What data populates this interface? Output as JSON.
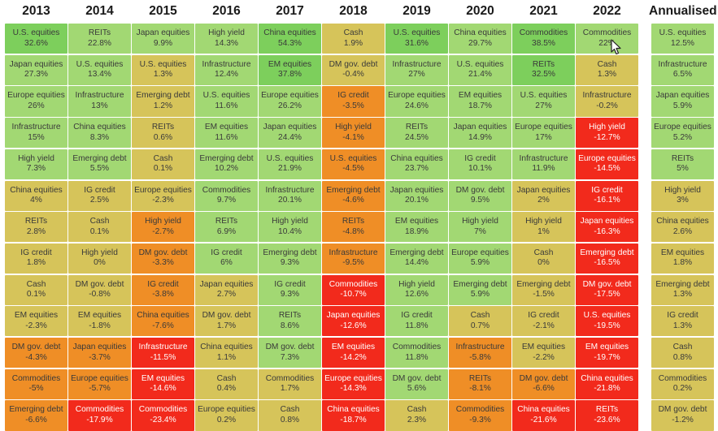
{
  "chart_data": {
    "type": "table",
    "columns": [
      "2013",
      "2014",
      "2015",
      "2016",
      "2017",
      "2018",
      "2019",
      "2020",
      "2021",
      "2022",
      "Annualised"
    ],
    "cells": [
      [
        [
          "U.S. equities",
          "32.6%"
        ],
        [
          "Japan equities",
          "27.3%"
        ],
        [
          "Europe equities",
          "26%"
        ],
        [
          "Infrastructure",
          "15%"
        ],
        [
          "High yield",
          "7.3%"
        ],
        [
          "China equities",
          "4%"
        ],
        [
          "REITs",
          "2.8%"
        ],
        [
          "IG credit",
          "1.8%"
        ],
        [
          "Cash",
          "0.1%"
        ],
        [
          "EM equities",
          "-2.3%"
        ],
        [
          "DM gov. debt",
          "-4.3%"
        ],
        [
          "Commodities",
          "-5%"
        ],
        [
          "Emerging debt",
          "-6.6%"
        ]
      ],
      [
        [
          "REITs",
          "22.8%"
        ],
        [
          "U.S. equities",
          "13.4%"
        ],
        [
          "Infrastructure",
          "13%"
        ],
        [
          "China equities",
          "8.3%"
        ],
        [
          "Emerging debt",
          "5.5%"
        ],
        [
          "IG credit",
          "2.5%"
        ],
        [
          "Cash",
          "0.1%"
        ],
        [
          "High yield",
          "0%"
        ],
        [
          "DM gov. debt",
          "-0.8%"
        ],
        [
          "EM equities",
          "-1.8%"
        ],
        [
          "Japan equities",
          "-3.7%"
        ],
        [
          "Europe equities",
          "-5.7%"
        ],
        [
          "Commodities",
          "-17.9%"
        ]
      ],
      [
        [
          "Japan equities",
          "9.9%"
        ],
        [
          "U.S. equities",
          "1.3%"
        ],
        [
          "Emerging debt",
          "1.2%"
        ],
        [
          "REITs",
          "0.6%"
        ],
        [
          "Cash",
          "0.1%"
        ],
        [
          "Europe equities",
          "-2.3%"
        ],
        [
          "High yield",
          "-2.7%"
        ],
        [
          "DM gov. debt",
          "-3.3%"
        ],
        [
          "IG credit",
          "-3.8%"
        ],
        [
          "China equities",
          "-7.6%"
        ],
        [
          "Infrastructure",
          "-11.5%"
        ],
        [
          "EM equities",
          "-14.6%"
        ],
        [
          "Commodities",
          "-23.4%"
        ]
      ],
      [
        [
          "High yield",
          "14.3%"
        ],
        [
          "Infrastructure",
          "12.4%"
        ],
        [
          "U.S. equities",
          "11.6%"
        ],
        [
          "EM equities",
          "11.6%"
        ],
        [
          "Emerging debt",
          "10.2%"
        ],
        [
          "Commodities",
          "9.7%"
        ],
        [
          "REITs",
          "6.9%"
        ],
        [
          "IG credit",
          "6%"
        ],
        [
          "Japan equities",
          "2.7%"
        ],
        [
          "DM gov. debt",
          "1.7%"
        ],
        [
          "China equities",
          "1.1%"
        ],
        [
          "Cash",
          "0.4%"
        ],
        [
          "Europe equities",
          "0.2%"
        ]
      ],
      [
        [
          "China equities",
          "54.3%"
        ],
        [
          "EM equities",
          "37.8%"
        ],
        [
          "Europe equities",
          "26.2%"
        ],
        [
          "Japan equities",
          "24.4%"
        ],
        [
          "U.S. equities",
          "21.9%"
        ],
        [
          "Infrastructure",
          "20.1%"
        ],
        [
          "High yield",
          "10.4%"
        ],
        [
          "Emerging debt",
          "9.3%"
        ],
        [
          "IG credit",
          "9.3%"
        ],
        [
          "REITs",
          "8.6%"
        ],
        [
          "DM gov. debt",
          "7.3%"
        ],
        [
          "Commodities",
          "1.7%"
        ],
        [
          "Cash",
          "0.8%"
        ]
      ],
      [
        [
          "Cash",
          "1.9%"
        ],
        [
          "DM gov. debt",
          "-0.4%"
        ],
        [
          "IG credit",
          "-3.5%"
        ],
        [
          "High yield",
          "-4.1%"
        ],
        [
          "U.S. equities",
          "-4.5%"
        ],
        [
          "Emerging debt",
          "-4.6%"
        ],
        [
          "REITs",
          "-4.8%"
        ],
        [
          "Infrastructure",
          "-9.5%"
        ],
        [
          "Commodities",
          "-10.7%"
        ],
        [
          "Japan equities",
          "-12.6%"
        ],
        [
          "EM equities",
          "-14.2%"
        ],
        [
          "Europe equities",
          "-14.3%"
        ],
        [
          "China equities",
          "-18.7%"
        ]
      ],
      [
        [
          "U.S. equities",
          "31.6%"
        ],
        [
          "Infrastructure",
          "27%"
        ],
        [
          "Europe equities",
          "24.6%"
        ],
        [
          "REITs",
          "24.5%"
        ],
        [
          "China equities",
          "23.7%"
        ],
        [
          "Japan equities",
          "20.1%"
        ],
        [
          "EM equities",
          "18.9%"
        ],
        [
          "Emerging debt",
          "14.4%"
        ],
        [
          "High yield",
          "12.6%"
        ],
        [
          "IG credit",
          "11.8%"
        ],
        [
          "Commodities",
          "11.8%"
        ],
        [
          "DM gov. debt",
          "5.6%"
        ],
        [
          "Cash",
          "2.3%"
        ]
      ],
      [
        [
          "China equities",
          "29.7%"
        ],
        [
          "U.S. equities",
          "21.4%"
        ],
        [
          "EM equities",
          "18.7%"
        ],
        [
          "Japan equities",
          "14.9%"
        ],
        [
          "IG credit",
          "10.1%"
        ],
        [
          "DM gov. debt",
          "9.5%"
        ],
        [
          "High yield",
          "7%"
        ],
        [
          "Europe equities",
          "5.9%"
        ],
        [
          "Emerging debt",
          "5.9%"
        ],
        [
          "Cash",
          "0.7%"
        ],
        [
          "Infrastructure",
          "-5.8%"
        ],
        [
          "REITs",
          "-8.1%"
        ],
        [
          "Commodities",
          "-9.3%"
        ]
      ],
      [
        [
          "Commodities",
          "38.5%"
        ],
        [
          "REITs",
          "32.5%"
        ],
        [
          "U.S. equities",
          "27%"
        ],
        [
          "Europe equities",
          "17%"
        ],
        [
          "Infrastructure",
          "11.9%"
        ],
        [
          "Japan equities",
          "2%"
        ],
        [
          "High yield",
          "1%"
        ],
        [
          "Cash",
          "0%"
        ],
        [
          "Emerging debt",
          "-1.5%"
        ],
        [
          "IG credit",
          "-2.1%"
        ],
        [
          "EM equities",
          "-2.2%"
        ],
        [
          "DM gov. debt",
          "-6.6%"
        ],
        [
          "China equities",
          "-21.6%"
        ]
      ],
      [
        [
          "Commodities",
          "22%"
        ],
        [
          "Cash",
          "1.3%"
        ],
        [
          "Infrastructure",
          "-0.2%"
        ],
        [
          "High yield",
          "-12.7%"
        ],
        [
          "Europe equities",
          "-14.5%"
        ],
        [
          "IG credit",
          "-16.1%"
        ],
        [
          "Japan equities",
          "-16.3%"
        ],
        [
          "Emerging debt",
          "-16.5%"
        ],
        [
          "DM gov. debt",
          "-17.5%"
        ],
        [
          "U.S. equities",
          "-19.5%"
        ],
        [
          "EM equities",
          "-19.7%"
        ],
        [
          "China equities",
          "-21.8%"
        ],
        [
          "REITs",
          "-23.6%"
        ]
      ],
      [
        [
          "U.S. equities",
          "12.5%"
        ],
        [
          "Infrastructure",
          "6.5%"
        ],
        [
          "Japan equities",
          "5.9%"
        ],
        [
          "Europe equities",
          "5.2%"
        ],
        [
          "REITs",
          "5%"
        ],
        [
          "High yield",
          "3%"
        ],
        [
          "China equities",
          "2.6%"
        ],
        [
          "EM equities",
          "1.8%"
        ],
        [
          "Emerging debt",
          "1.3%"
        ],
        [
          "IG credit",
          "1.3%"
        ],
        [
          "Cash",
          "0.8%"
        ],
        [
          "Commodities",
          "0.2%"
        ],
        [
          "DM gov. debt",
          "-1.2%"
        ]
      ]
    ],
    "colors": {
      "strong_green": "#7dcf5c",
      "green": "#a2d873",
      "khaki": "#d6c45a",
      "orange": "#ef8e26",
      "red": "#f22a1c",
      "header_text": "#1a1a1a"
    }
  }
}
